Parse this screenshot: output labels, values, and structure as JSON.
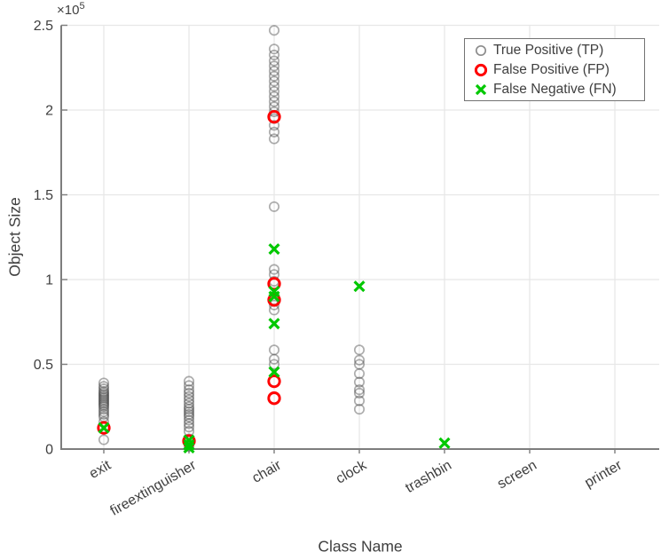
{
  "figure": {
    "xlabel": "Class Name",
    "ylabel": "Object Size",
    "y_multiplier": {
      "base": "×10",
      "exp": "5"
    }
  },
  "legend": {
    "items": [
      {
        "label": "True Positive (TP)",
        "marker": "circle",
        "color": "#8c8c8c"
      },
      {
        "label": "False Positive (FP)",
        "marker": "circle-bold",
        "color": "#ff0000"
      },
      {
        "label": "False Negative (FN)",
        "marker": "x",
        "color": "#00c800"
      }
    ]
  },
  "colors": {
    "axis": "#7d7d7d",
    "grid": "#e7e7e7",
    "text": "#3f3f3f",
    "background": "#ffffff"
  },
  "chart_data": {
    "type": "scatter",
    "title": "",
    "xlabel": "Class Name",
    "ylabel": "Object Size",
    "categories": [
      "exit",
      "fireextinguisher",
      "chair",
      "clock",
      "trashbin",
      "screen",
      "printer"
    ],
    "ylim": [
      0,
      250000
    ],
    "yticks": [
      0,
      50000,
      100000,
      150000,
      200000,
      250000
    ],
    "ytick_labels": [
      "0",
      "0.5",
      "1",
      "1.5",
      "2",
      "2.5"
    ],
    "y_multiplier_label": "×10⁵",
    "grid": true,
    "legend_position": "northeast",
    "xtick_angle": 30,
    "series": [
      {
        "name": "True Positive (TP)",
        "marker": "circle",
        "color": "#3c3c3c",
        "opacity": 0.42,
        "values_by_category": [
          [
            39000,
            37000,
            35500,
            34000,
            33000,
            32000,
            31000,
            30000,
            29000,
            28000,
            27000,
            26000,
            25000,
            23500,
            22000,
            20500,
            19000,
            16000,
            5500
          ],
          [
            40000,
            37500,
            35000,
            33000,
            31000,
            29000,
            27000,
            25000,
            23500,
            22000,
            20500,
            19000,
            17000,
            15000,
            13000,
            10500,
            6000,
            3000,
            1500
          ],
          [
            247000,
            236000,
            232500,
            229000,
            226000,
            223000,
            220000,
            217000,
            214000,
            211000,
            208000,
            205000,
            202000,
            199000,
            195000,
            191000,
            187000,
            183000,
            143000,
            106000,
            103000,
            99000,
            88000,
            85000,
            82000,
            58500,
            53000,
            50000
          ],
          [
            58500,
            52500,
            50000,
            44500,
            39500,
            35000,
            33000,
            28500,
            23500
          ],
          [],
          [],
          []
        ]
      },
      {
        "name": "False Positive (FP)",
        "marker": "circle-bold",
        "color": "#ff0000",
        "opacity": 1,
        "values_by_category": [
          [
            12500
          ],
          [
            4700
          ],
          [
            196000,
            97500,
            88000,
            40000,
            30000
          ],
          [],
          [],
          [],
          []
        ]
      },
      {
        "name": "False Negative (FN)",
        "marker": "x",
        "color": "#00c800",
        "opacity": 1,
        "values_by_category": [
          [
            12500
          ],
          [
            5200,
            2500,
            800
          ],
          [
            118000,
            93000,
            90000,
            74000,
            45500
          ],
          [
            96000
          ],
          [
            3500
          ],
          [],
          []
        ]
      }
    ]
  }
}
